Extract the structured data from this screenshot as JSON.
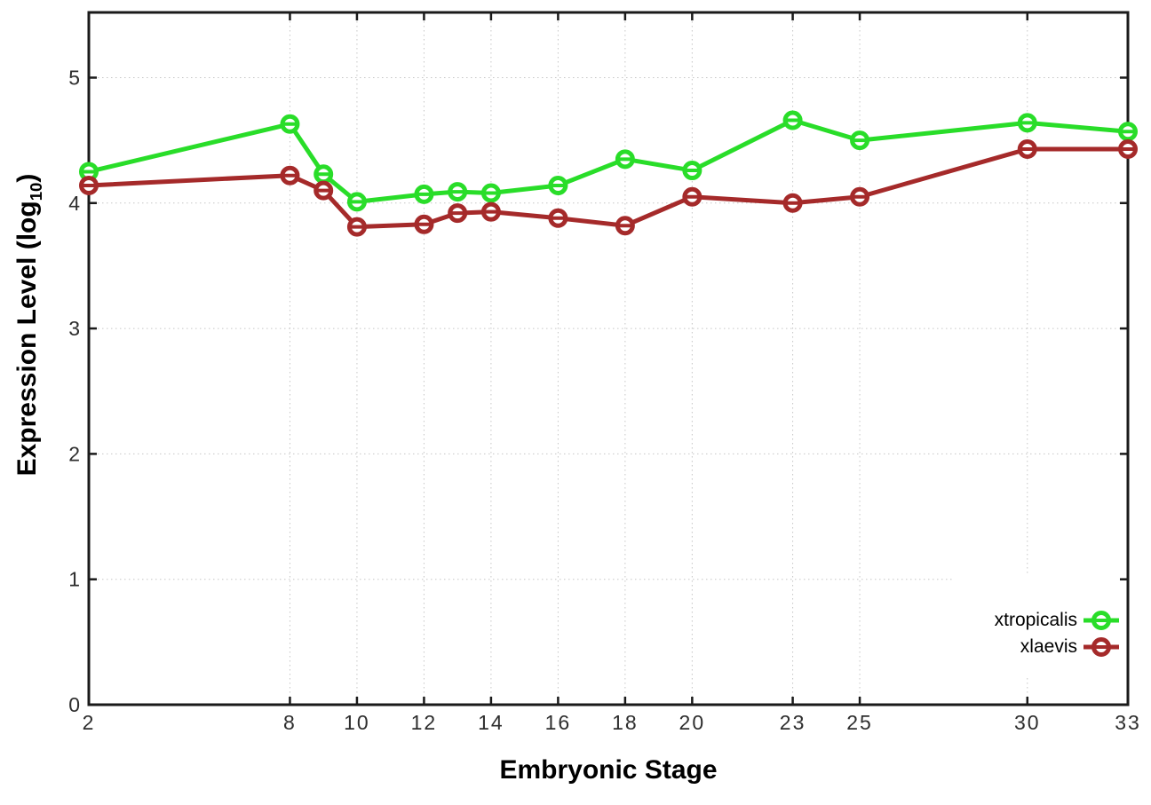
{
  "figure": {
    "background": "#ffffff",
    "border_color": "#1a1a1a",
    "grid_color": "#c6c6c6",
    "tick_color": "#1a1a1a",
    "tick_label_color": "#2e2e2e",
    "text_color": "#000000"
  },
  "chart_data": {
    "type": "line",
    "title": "",
    "xlabel": "Embryonic Stage",
    "ylabel": "Expression Level (log10)",
    "ylabel_parts": {
      "prefix": "Expression Level (log",
      "subscript": "10",
      "suffix": ")"
    },
    "x": [
      2,
      8,
      9,
      10,
      12,
      13,
      14,
      16,
      18,
      20,
      23,
      25,
      30,
      33
    ],
    "xticks": [
      2,
      8,
      10,
      12,
      14,
      16,
      18,
      20,
      23,
      25,
      30,
      33
    ],
    "yticks": [
      0,
      1,
      2,
      3,
      4,
      5
    ],
    "xlim": [
      2,
      33
    ],
    "ylim": [
      0,
      5.52
    ],
    "grid": true,
    "grid_style": "dotted",
    "legend_position": "inside-bottom-right",
    "marker": "open-circle-with-horizontal-bar",
    "series": [
      {
        "name": "xtropicalis",
        "color": "#29dd29",
        "values": [
          4.25,
          4.63,
          4.23,
          4.01,
          4.07,
          4.09,
          4.08,
          4.14,
          4.35,
          4.26,
          4.66,
          4.5,
          4.64,
          4.57
        ]
      },
      {
        "name": "xlaevis",
        "color": "#a52a2a",
        "values": [
          4.14,
          4.22,
          4.1,
          3.81,
          3.83,
          3.92,
          3.93,
          3.88,
          3.82,
          4.05,
          4.0,
          4.05,
          4.43,
          4.43
        ]
      }
    ]
  }
}
